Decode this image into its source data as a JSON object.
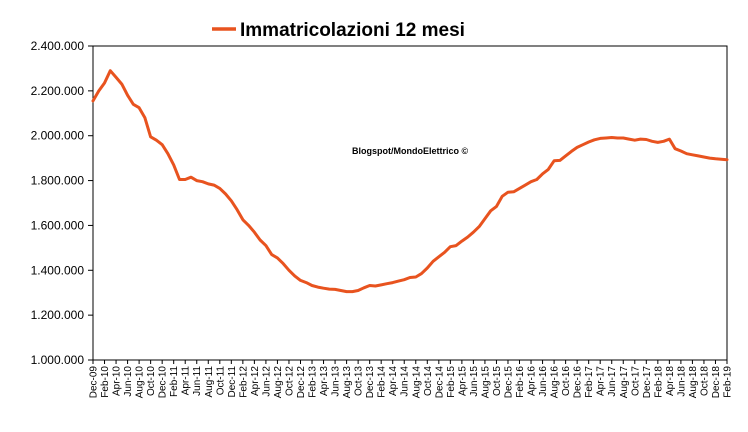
{
  "chart_data": {
    "type": "line",
    "title": "",
    "xlabel": "",
    "ylabel": "",
    "ylim": [
      1000000,
      2400000
    ],
    "y_ticks": [
      1000000,
      1200000,
      1400000,
      1600000,
      1800000,
      2000000,
      2200000,
      2400000
    ],
    "y_tick_labels": [
      "1.000.000",
      "1.200.000",
      "1.400.000",
      "1.600.000",
      "1.800.000",
      "2.000.000",
      "2.200.000",
      "2.400.000"
    ],
    "grid": false,
    "legend_position": "top-left",
    "annotation": "Blogspot/MondoElettrico ©",
    "x_tick_labels": [
      "Dec-09",
      "Feb-10",
      "Apr-10",
      "Jun-10",
      "Aug-10",
      "Oct-10",
      "Dec-10",
      "Feb-11",
      "Apr-11",
      "Jun-11",
      "Aug-11",
      "Oct-11",
      "Dec-11",
      "Feb-12",
      "Apr-12",
      "Jun-12",
      "Aug-12",
      "Oct-12",
      "Dec-12",
      "Feb-13",
      "Apr-13",
      "Jun-13",
      "Aug-13",
      "Oct-13",
      "Dec-13",
      "Feb-14",
      "Apr-14",
      "Jun-14",
      "Aug-14",
      "Oct-14",
      "Dec-14",
      "Feb-15",
      "Apr-15",
      "Jun-15",
      "Aug-15",
      "Oct-15",
      "Dec-15",
      "Feb-16",
      "Apr-16",
      "Jun-16",
      "Aug-16",
      "Oct-16",
      "Dec-16",
      "Feb-17",
      "Apr-17",
      "Jun-17",
      "Aug-17",
      "Oct-17",
      "Dec-17",
      "Feb-18",
      "Apr-18",
      "Jun-18",
      "Aug-18",
      "Oct-18",
      "Dec-18",
      "Feb-19"
    ],
    "series": [
      {
        "name": "Immatricolazioni 12 mesi",
        "color": "#e8531f",
        "x_months": [
          0,
          1,
          2,
          3,
          4,
          5,
          6,
          7,
          8,
          9,
          10,
          11,
          12,
          13,
          14,
          15,
          16,
          17,
          18,
          19,
          20,
          21,
          22,
          23,
          24,
          25,
          26,
          27,
          28,
          29,
          30,
          31,
          32,
          33,
          34,
          35,
          36,
          37,
          38,
          39,
          40,
          41,
          42,
          43,
          44,
          45,
          46,
          47,
          48,
          49,
          50,
          51,
          52,
          53,
          54,
          55,
          56,
          57,
          58,
          59,
          60,
          61,
          62,
          63,
          64,
          65,
          66,
          67,
          68,
          69,
          70,
          71,
          72,
          73,
          74,
          75,
          76,
          77,
          78,
          79,
          80,
          81,
          82,
          83,
          84,
          85,
          86,
          87,
          88,
          89,
          90,
          91,
          92,
          93,
          94,
          95,
          96,
          97,
          98,
          99,
          100,
          101,
          102,
          103,
          104,
          105,
          106,
          107,
          108,
          109,
          110
        ],
        "values": [
          2155000,
          2200000,
          2235000,
          2290000,
          2260000,
          2230000,
          2180000,
          2140000,
          2125000,
          2080000,
          1995000,
          1980000,
          1960000,
          1920000,
          1870000,
          1805000,
          1805000,
          1815000,
          1800000,
          1795000,
          1785000,
          1780000,
          1765000,
          1740000,
          1710000,
          1670000,
          1625000,
          1600000,
          1570000,
          1535000,
          1510000,
          1470000,
          1455000,
          1430000,
          1400000,
          1375000,
          1355000,
          1345000,
          1332000,
          1325000,
          1320000,
          1316000,
          1315000,
          1310000,
          1305000,
          1305000,
          1310000,
          1322000,
          1332000,
          1330000,
          1335000,
          1340000,
          1345000,
          1352000,
          1358000,
          1368000,
          1370000,
          1385000,
          1410000,
          1440000,
          1460000,
          1480000,
          1505000,
          1510000,
          1530000,
          1548000,
          1570000,
          1595000,
          1630000,
          1665000,
          1685000,
          1730000,
          1748000,
          1750000,
          1765000,
          1780000,
          1795000,
          1805000,
          1830000,
          1850000,
          1888000,
          1890000,
          1910000,
          1930000,
          1948000,
          1960000,
          1972000,
          1982000,
          1988000,
          1990000,
          1992000,
          1990000,
          1990000,
          1985000,
          1980000,
          1985000,
          1983000,
          1975000,
          1970000,
          1975000,
          1985000,
          1942000,
          1932000,
          1920000,
          1915000,
          1910000,
          1905000,
          1900000,
          1897000,
          1895000,
          1893000
        ]
      }
    ]
  }
}
